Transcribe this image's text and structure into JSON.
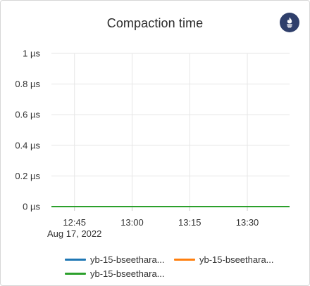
{
  "panel": {
    "title": "Compaction time",
    "badge_icon": "prometheus-logo-icon"
  },
  "chart_data": {
    "type": "line",
    "title": "Compaction time",
    "xlabel": "",
    "ylabel": "",
    "ylim": [
      0,
      1
    ],
    "yticks": [
      {
        "value": 0,
        "label": "0 µs"
      },
      {
        "value": 0.2,
        "label": "0.2 µs"
      },
      {
        "value": 0.4,
        "label": "0.4 µs"
      },
      {
        "value": 0.6,
        "label": "0.6 µs"
      },
      {
        "value": 0.8,
        "label": "0.8 µs"
      },
      {
        "value": 1,
        "label": "1 µs"
      }
    ],
    "xrange": [
      "12:39",
      "13:41"
    ],
    "xticks": [
      {
        "value": "12:45",
        "label": "12:45",
        "sublabel": "Aug 17, 2022"
      },
      {
        "value": "13:00",
        "label": "13:00",
        "sublabel": ""
      },
      {
        "value": "13:15",
        "label": "13:15",
        "sublabel": ""
      },
      {
        "value": "13:30",
        "label": "13:30",
        "sublabel": ""
      }
    ],
    "grid": true,
    "legend_position": "bottom",
    "series": [
      {
        "name": "yb-15-bseethara...",
        "color": "#1f77b4",
        "x": [
          "12:39",
          "13:41"
        ],
        "values": [
          0,
          0
        ]
      },
      {
        "name": "yb-15-bseethara...",
        "color": "#ff7f0e",
        "x": [
          "12:39",
          "13:41"
        ],
        "values": [
          0,
          0
        ]
      },
      {
        "name": "yb-15-bseethara...",
        "color": "#2ca02c",
        "x": [
          "12:39",
          "13:41"
        ],
        "values": [
          0,
          0
        ]
      }
    ]
  }
}
